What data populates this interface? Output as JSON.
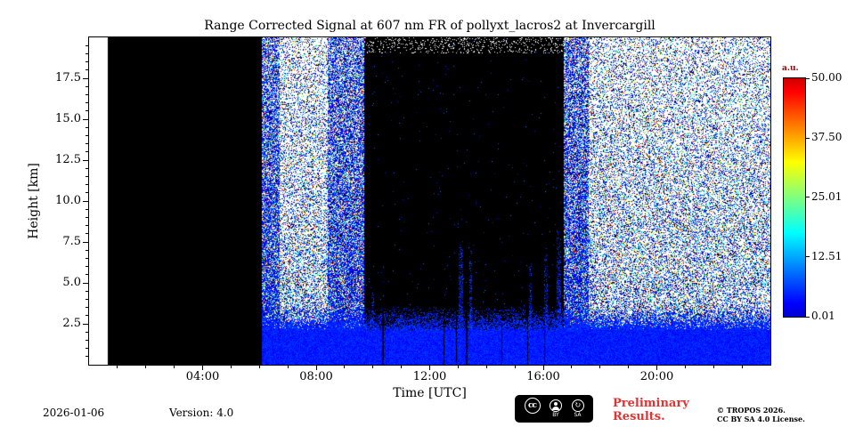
{
  "figure": {
    "title": "Range Corrected Signal at 607 nm FR of pollyxt_lacros2 at Invercargill",
    "xlabel": "Time [UTC]",
    "ylabel": "Height [km]",
    "colorbar_label": "a.u."
  },
  "footer": {
    "date": "2026-01-06",
    "version": "Version: 4.0",
    "preliminary_line1": "Preliminary",
    "preliminary_line2": "Results.",
    "copyright_line1": "© TROPOS 2026.",
    "copyright_line2": "CC BY SA 4.0 License.",
    "cc_cc": "cc",
    "cc_by": "BY",
    "cc_sa": "SA"
  },
  "chart_data": {
    "type": "heatmap",
    "title": "Range Corrected Signal at 607 nm FR of pollyxt_lacros2 at Invercargill",
    "xlabel": "Time [UTC]",
    "ylabel": "Height [km]",
    "xlim_hours": [
      0,
      24
    ],
    "ylim_km": [
      0,
      20
    ],
    "grid": false,
    "x_ticks": [
      {
        "hour": 4,
        "label": "04:00"
      },
      {
        "hour": 8,
        "label": "08:00"
      },
      {
        "hour": 12,
        "label": "12:00"
      },
      {
        "hour": 16,
        "label": "16:00"
      },
      {
        "hour": 20,
        "label": "20:00"
      }
    ],
    "y_ticks": [
      {
        "km": 2.5,
        "label": "2.5"
      },
      {
        "km": 5.0,
        "label": "5.0"
      },
      {
        "km": 7.5,
        "label": "7.5"
      },
      {
        "km": 10.0,
        "label": "10.0"
      },
      {
        "km": 12.5,
        "label": "12.5"
      },
      {
        "km": 15.0,
        "label": "15.0"
      },
      {
        "km": 17.5,
        "label": "17.5"
      }
    ],
    "colorbar": {
      "label": "a.u.",
      "colormap": "jet",
      "vmin": 0.01,
      "vmax": 50.0,
      "ticks": [
        {
          "value": 50.0,
          "label": "50.00"
        },
        {
          "value": 37.5,
          "label": "37.50"
        },
        {
          "value": 25.01,
          "label": "25.01"
        },
        {
          "value": 12.51,
          "label": "12.51"
        },
        {
          "value": 0.01,
          "label": "0.01"
        }
      ]
    },
    "regions": [
      {
        "name": "no-data-white",
        "t_start": 0.0,
        "t_end": 0.65,
        "description": "no measurement, white"
      },
      {
        "name": "no-data-black",
        "t_start": 0.65,
        "t_end": 6.1,
        "description": "instrument dark block, solid black full height"
      },
      {
        "name": "clear-noise-morning",
        "t_start": 6.1,
        "t_end": 9.7,
        "description": "speckled background noise aloft, strong blue aerosol signal below ~3 km"
      },
      {
        "name": "attenuated-cloud",
        "t_start": 9.7,
        "t_end": 16.72,
        "description": "signal fully attenuated above ~3 km (black), blue boundary-layer signal below, sporadic blue plumes to ~7.5 km and thin black gaps"
      },
      {
        "name": "clear-noise-evening",
        "t_start": 16.72,
        "t_end": 24.0,
        "description": "speckled background noise aloft, blue signal below ~3 km"
      }
    ],
    "structure": {
      "seed": 42,
      "no_data_start_hour": 0.65,
      "no_data_end_hour": 6.1,
      "cloud_start_hour": 9.7,
      "cloud_end_hour": 16.72,
      "surface_top_km": 2.1,
      "haze_top_km": 3.6,
      "gap_hours": [
        10.35,
        12.5,
        12.95,
        13.3,
        14.55,
        15.45,
        16.05
      ],
      "streaks": [
        {
          "t": 10.0,
          "top": 4.5,
          "w": 0.1
        },
        {
          "t": 13.1,
          "top": 7.6,
          "w": 0.14
        },
        {
          "t": 13.45,
          "top": 7.0,
          "w": 0.1
        },
        {
          "t": 15.55,
          "top": 6.2,
          "w": 0.1
        },
        {
          "t": 16.1,
          "top": 7.2,
          "w": 0.12
        },
        {
          "t": 16.55,
          "top": 8.2,
          "w": 0.14
        }
      ],
      "edge_zones": [
        [
          6.1,
          6.7
        ],
        [
          8.4,
          9.7
        ],
        [
          16.72,
          17.6
        ]
      ]
    }
  }
}
